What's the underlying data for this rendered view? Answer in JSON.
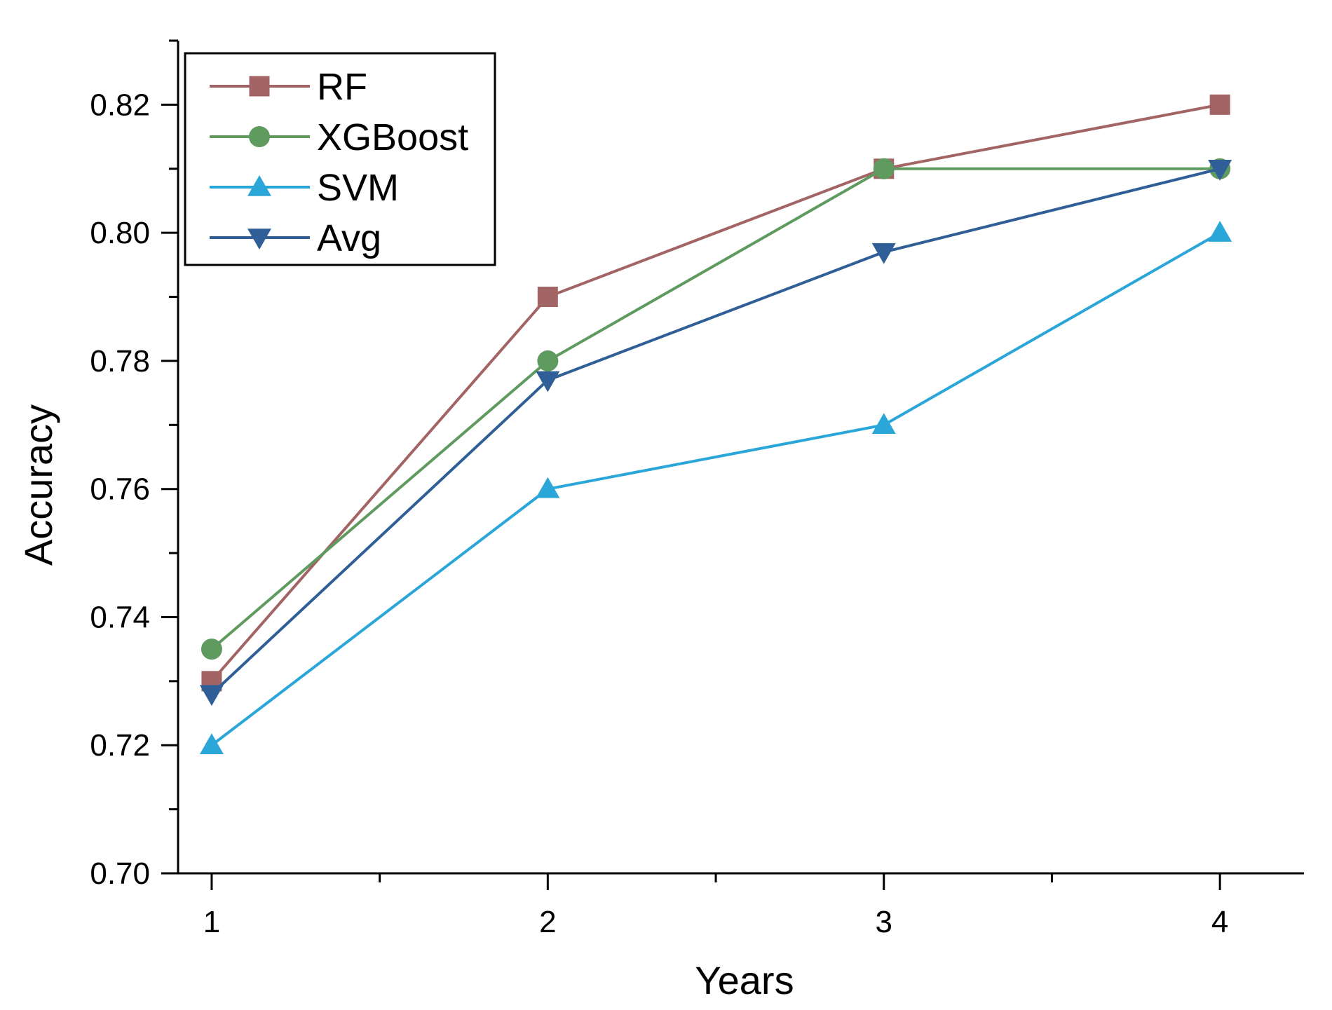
{
  "chart_data": {
    "type": "line",
    "title": "",
    "xlabel": "Years",
    "ylabel": "Accuracy",
    "x": [
      1,
      2,
      3,
      4
    ],
    "xticks": [
      "1",
      "2",
      "3",
      "4"
    ],
    "xlim": [
      0.9,
      4.25
    ],
    "ylim": [
      0.7,
      0.83
    ],
    "yticks": [
      "0.70",
      "0.72",
      "0.74",
      "0.76",
      "0.78",
      "0.80",
      "0.82"
    ],
    "legend_position": "top-left",
    "series": [
      {
        "name": "RF",
        "marker": "square",
        "color": "#a26464",
        "values": [
          0.73,
          0.79,
          0.81,
          0.82
        ]
      },
      {
        "name": "XGBoost",
        "marker": "circle",
        "color": "#5f9a5f",
        "values": [
          0.735,
          0.78,
          0.81,
          0.81
        ]
      },
      {
        "name": "SVM",
        "marker": "triangle-up",
        "color": "#2aa6d8",
        "values": [
          0.72,
          0.76,
          0.77,
          0.8
        ]
      },
      {
        "name": "Avg",
        "marker": "triangle-down",
        "color": "#2f5f96",
        "values": [
          0.728,
          0.777,
          0.797,
          0.81
        ]
      }
    ]
  }
}
